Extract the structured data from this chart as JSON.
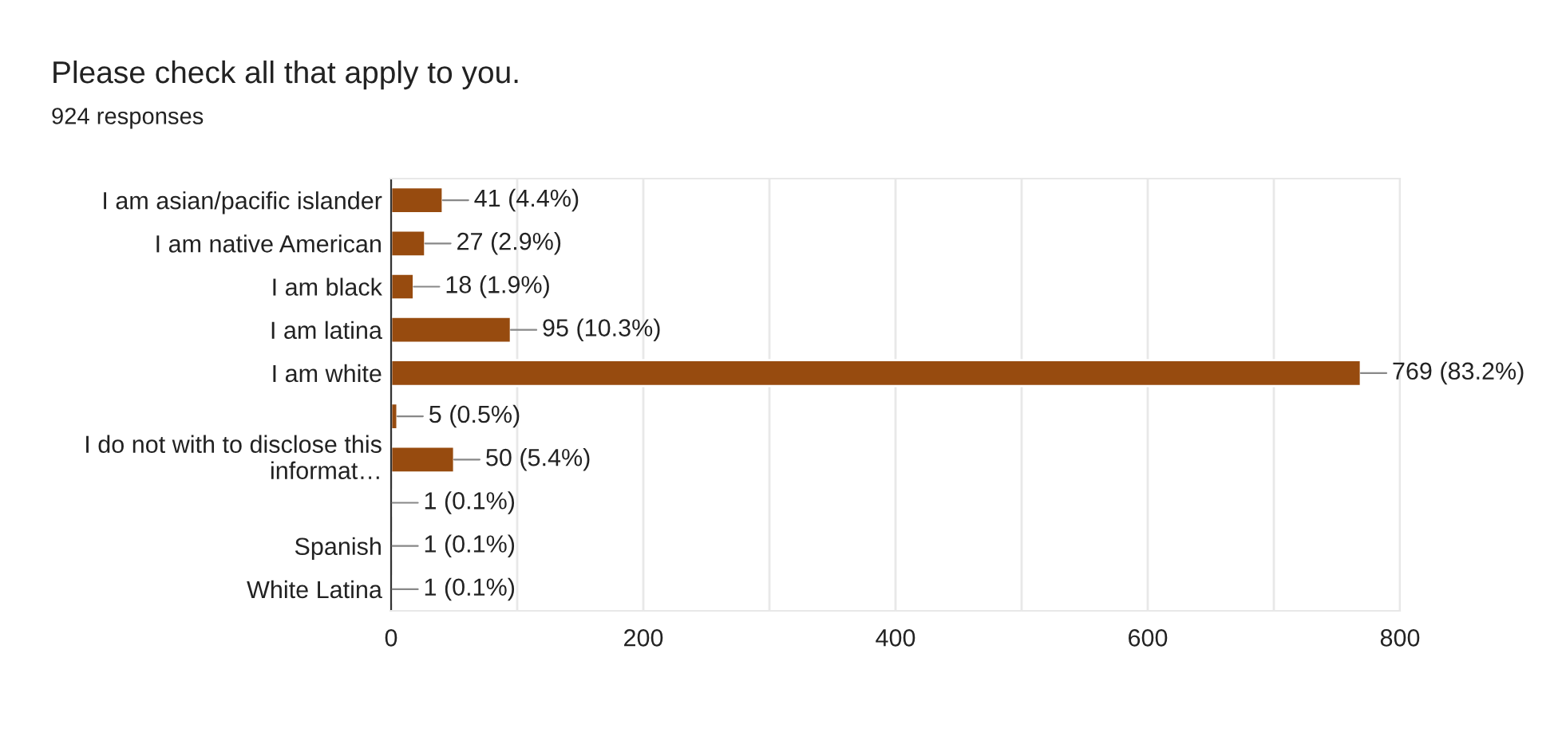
{
  "chart_data": {
    "type": "bar",
    "orientation": "horizontal",
    "title": "Please check all that apply to you.",
    "subtitle": "924 responses",
    "categories": [
      "I am asian/pacific islander",
      "I am native American",
      "I am black",
      "I am latina",
      "I am white",
      null,
      "I do not with to disclose this\ninformat…",
      null,
      "Spanish",
      "White Latina"
    ],
    "values": [
      41,
      27,
      18,
      95,
      769,
      5,
      50,
      1,
      1,
      1
    ],
    "value_labels": [
      "41 (4.4%)",
      "27 (2.9%)",
      "18 (1.9%)",
      "95 (10.3%)",
      "769 (83.2%)",
      "5 (0.5%)",
      "50 (5.4%)",
      "1 (0.1%)",
      "1 (0.1%)",
      "1 (0.1%)"
    ],
    "color": "#974b0f",
    "xlim": [
      0,
      800
    ],
    "xticks": [
      0,
      {
        "value": 100,
        "label": null
      },
      200,
      {
        "value": 300,
        "label": null
      },
      400,
      {
        "value": 500,
        "label": null
      },
      600,
      {
        "value": 700,
        "label": null
      },
      800
    ],
    "grid": "x"
  }
}
